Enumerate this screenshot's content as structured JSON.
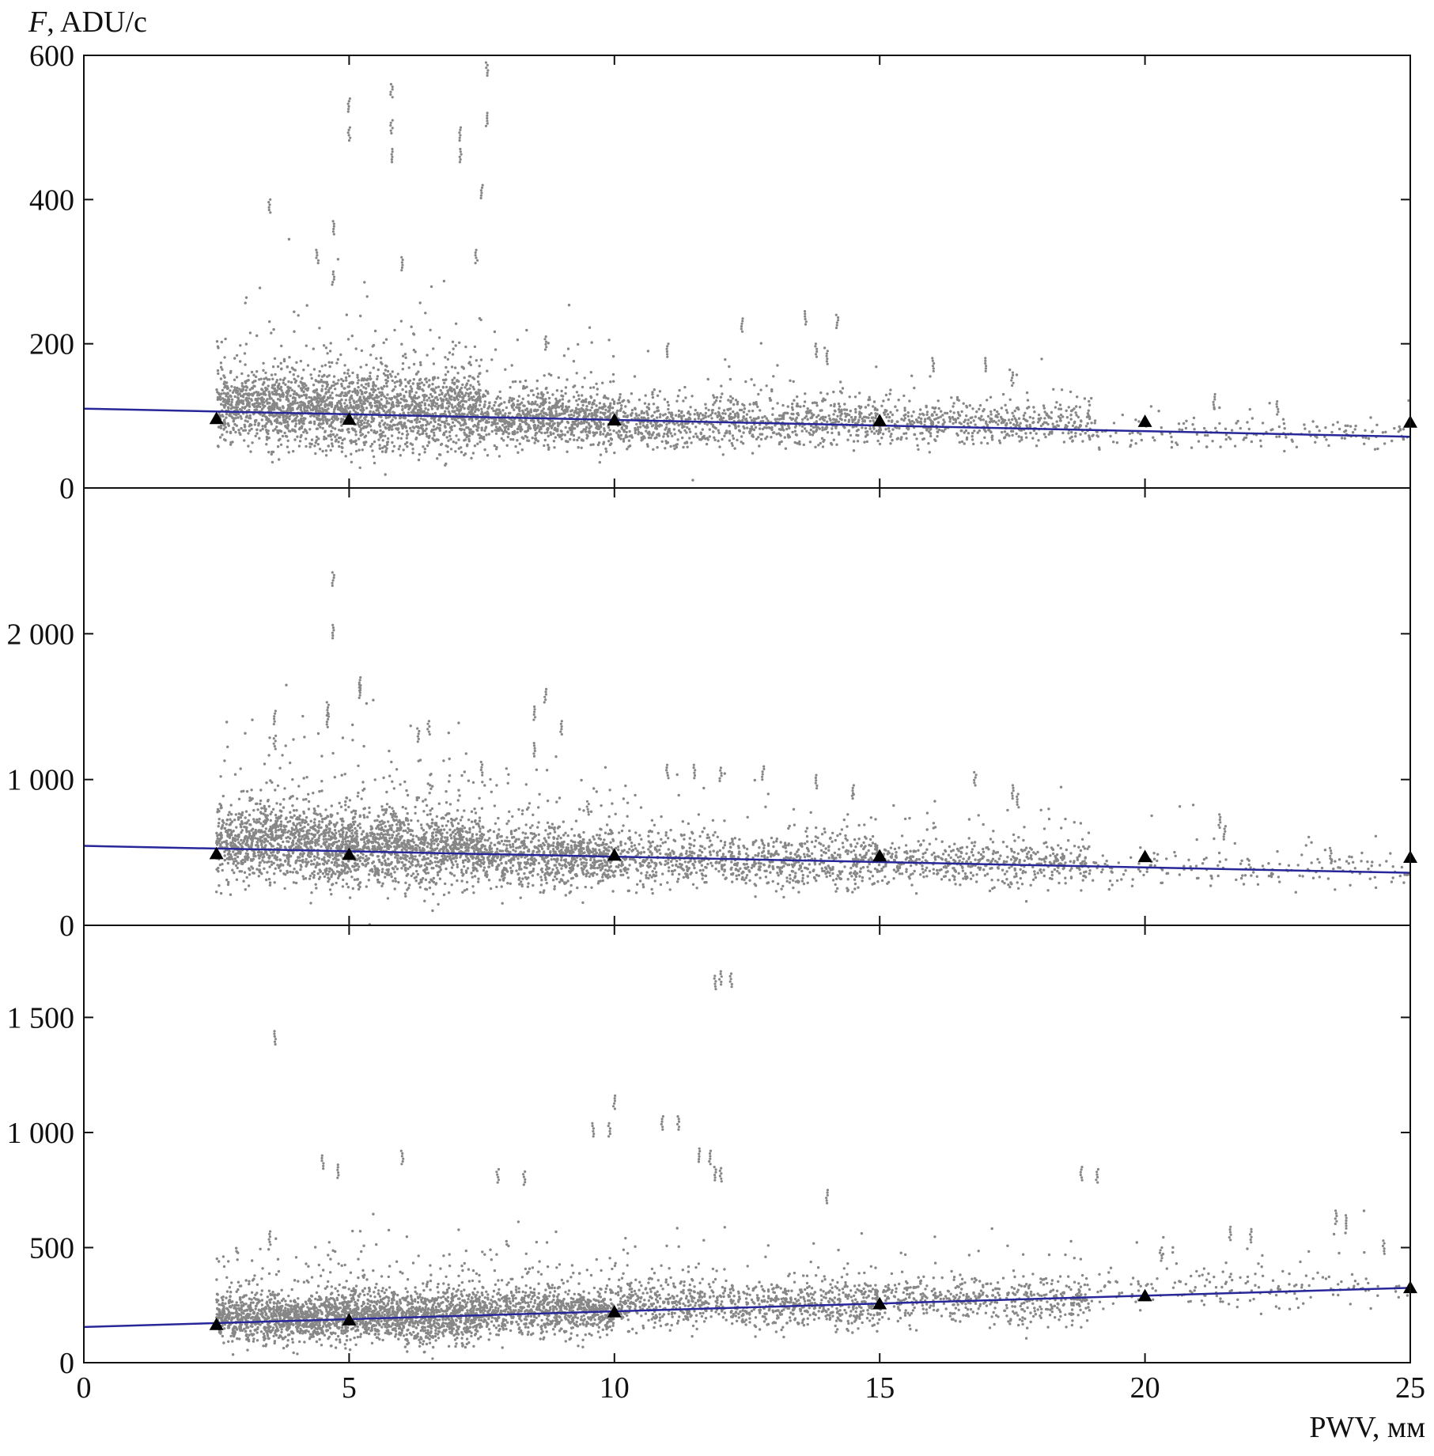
{
  "chart_data": {
    "type": "scatter",
    "ylabel": "F, ADU/c",
    "ylabel_italic": "F",
    "ylabel_rest": ", ADU/c",
    "xlabel": "PWV, мм",
    "xlim": [
      0,
      25
    ],
    "x_ticks": [
      0,
      5,
      10,
      15,
      20,
      25
    ],
    "x_tick_labels": [
      "0",
      "5",
      "10",
      "15",
      "20",
      "25"
    ],
    "point_color": "#878787",
    "marker_color": "#000000",
    "fit_color": "#27279a",
    "frame_color": "#111111",
    "panels": [
      {
        "ylim": [
          0,
          600
        ],
        "y_ticks": [
          0,
          200,
          400,
          600
        ],
        "y_tick_labels": [
          "0",
          "200",
          "400",
          "600"
        ],
        "triangles": [
          {
            "x": 2.5,
            "y": 96
          },
          {
            "x": 5,
            "y": 95
          },
          {
            "x": 10,
            "y": 94
          },
          {
            "x": 15,
            "y": 93
          },
          {
            "x": 20,
            "y": 92
          },
          {
            "x": 25,
            "y": 91
          }
        ],
        "fit_line": {
          "x": [
            0,
            25
          ],
          "y": [
            110,
            71
          ]
        },
        "scatter_density": [
          {
            "x0": 2.5,
            "x1": 4.5,
            "center": 110,
            "spread": 45,
            "count": 900
          },
          {
            "x0": 4.5,
            "x1": 7.5,
            "center": 105,
            "spread": 50,
            "count": 1400
          },
          {
            "x0": 7.5,
            "x1": 10,
            "center": 95,
            "spread": 35,
            "count": 800
          },
          {
            "x0": 10,
            "x1": 15,
            "center": 90,
            "spread": 30,
            "count": 900
          },
          {
            "x0": 15,
            "x1": 19,
            "center": 88,
            "spread": 25,
            "count": 500
          },
          {
            "x0": 19,
            "x1": 25,
            "center": 75,
            "spread": 18,
            "count": 180
          }
        ],
        "outliers": [
          {
            "x": 3.5,
            "y": 400
          },
          {
            "x": 4.7,
            "y": 370
          },
          {
            "x": 5.0,
            "y": 540
          },
          {
            "x": 5.0,
            "y": 500
          },
          {
            "x": 5.8,
            "y": 560
          },
          {
            "x": 5.8,
            "y": 510
          },
          {
            "x": 5.8,
            "y": 470
          },
          {
            "x": 7.1,
            "y": 500
          },
          {
            "x": 7.1,
            "y": 470
          },
          {
            "x": 7.6,
            "y": 590
          },
          {
            "x": 7.6,
            "y": 520
          },
          {
            "x": 7.5,
            "y": 420
          },
          {
            "x": 4.4,
            "y": 330
          },
          {
            "x": 4.7,
            "y": 300
          },
          {
            "x": 6.0,
            "y": 320
          },
          {
            "x": 7.4,
            "y": 330
          },
          {
            "x": 12.4,
            "y": 235
          },
          {
            "x": 13.6,
            "y": 245
          },
          {
            "x": 14.2,
            "y": 240
          },
          {
            "x": 13.8,
            "y": 200
          },
          {
            "x": 14.0,
            "y": 190
          },
          {
            "x": 17.0,
            "y": 180
          },
          {
            "x": 16.0,
            "y": 180
          },
          {
            "x": 21.3,
            "y": 130
          },
          {
            "x": 22.5,
            "y": 120
          },
          {
            "x": 17.5,
            "y": 160
          },
          {
            "x": 11.0,
            "y": 200
          },
          {
            "x": 8.7,
            "y": 210
          }
        ]
      },
      {
        "ylim": [
          0,
          3000
        ],
        "y_ticks": [
          0,
          1000,
          2000
        ],
        "y_tick_labels": [
          "0",
          "1 000",
          "2 000"
        ],
        "triangles": [
          {
            "x": 2.5,
            "y": 490
          },
          {
            "x": 5,
            "y": 485
          },
          {
            "x": 10,
            "y": 480
          },
          {
            "x": 15,
            "y": 475
          },
          {
            "x": 20,
            "y": 470
          },
          {
            "x": 25,
            "y": 465
          }
        ],
        "fit_line": {
          "x": [
            0,
            25
          ],
          "y": [
            545,
            360
          ]
        },
        "scatter_density": [
          {
            "x0": 2.5,
            "x1": 4.5,
            "center": 560,
            "spread": 240,
            "count": 900
          },
          {
            "x0": 4.5,
            "x1": 7.5,
            "center": 520,
            "spread": 230,
            "count": 1400
          },
          {
            "x0": 7.5,
            "x1": 10,
            "center": 460,
            "spread": 180,
            "count": 800
          },
          {
            "x0": 10,
            "x1": 15,
            "center": 440,
            "spread": 160,
            "count": 900
          },
          {
            "x0": 15,
            "x1": 19,
            "center": 420,
            "spread": 140,
            "count": 500
          },
          {
            "x0": 19,
            "x1": 25,
            "center": 380,
            "spread": 100,
            "count": 180
          }
        ],
        "outliers": [
          {
            "x": 4.7,
            "y": 2420
          },
          {
            "x": 4.7,
            "y": 2060
          },
          {
            "x": 5.2,
            "y": 1700
          },
          {
            "x": 5.2,
            "y": 1650
          },
          {
            "x": 3.6,
            "y": 1470
          },
          {
            "x": 3.6,
            "y": 1300
          },
          {
            "x": 4.6,
            "y": 1530
          },
          {
            "x": 4.6,
            "y": 1450
          },
          {
            "x": 6.5,
            "y": 1400
          },
          {
            "x": 6.3,
            "y": 1350
          },
          {
            "x": 8.7,
            "y": 1620
          },
          {
            "x": 8.5,
            "y": 1500
          },
          {
            "x": 9.0,
            "y": 1400
          },
          {
            "x": 8.5,
            "y": 1250
          },
          {
            "x": 11.0,
            "y": 1100
          },
          {
            "x": 11.5,
            "y": 1100
          },
          {
            "x": 12.0,
            "y": 1080
          },
          {
            "x": 12.8,
            "y": 1090
          },
          {
            "x": 13.8,
            "y": 1030
          },
          {
            "x": 14.5,
            "y": 960
          },
          {
            "x": 16.8,
            "y": 1050
          },
          {
            "x": 17.5,
            "y": 960
          },
          {
            "x": 17.6,
            "y": 900
          },
          {
            "x": 21.4,
            "y": 760
          },
          {
            "x": 21.5,
            "y": 680
          },
          {
            "x": 23.5,
            "y": 530
          },
          {
            "x": 7.5,
            "y": 1120
          },
          {
            "x": 9.5,
            "y": 850
          }
        ]
      },
      {
        "ylim": [
          0,
          1900
        ],
        "y_ticks": [
          0,
          500,
          1000,
          1500
        ],
        "y_tick_labels": [
          "0",
          "500",
          "1 000",
          "1 500"
        ],
        "triangles": [
          {
            "x": 2.5,
            "y": 165
          },
          {
            "x": 5,
            "y": 185
          },
          {
            "x": 10,
            "y": 220
          },
          {
            "x": 15,
            "y": 255
          },
          {
            "x": 20,
            "y": 290
          },
          {
            "x": 25,
            "y": 325
          }
        ],
        "fit_line": {
          "x": [
            0,
            25
          ],
          "y": [
            155,
            325
          ]
        },
        "scatter_density": [
          {
            "x0": 2.5,
            "x1": 4.5,
            "center": 190,
            "spread": 90,
            "count": 900
          },
          {
            "x0": 4.5,
            "x1": 7.5,
            "center": 200,
            "spread": 100,
            "count": 1400
          },
          {
            "x0": 7.5,
            "x1": 10,
            "center": 220,
            "spread": 90,
            "count": 800
          },
          {
            "x0": 10,
            "x1": 15,
            "center": 250,
            "spread": 90,
            "count": 900
          },
          {
            "x0": 15,
            "x1": 19,
            "center": 270,
            "spread": 90,
            "count": 500
          },
          {
            "x0": 19,
            "x1": 25,
            "center": 320,
            "spread": 90,
            "count": 180
          }
        ],
        "outliers": [
          {
            "x": 3.6,
            "y": 1440
          },
          {
            "x": 12.0,
            "y": 1700
          },
          {
            "x": 12.2,
            "y": 1690
          },
          {
            "x": 11.9,
            "y": 1680
          },
          {
            "x": 10.0,
            "y": 1160
          },
          {
            "x": 9.6,
            "y": 1040
          },
          {
            "x": 9.9,
            "y": 1040
          },
          {
            "x": 10.9,
            "y": 1070
          },
          {
            "x": 11.2,
            "y": 1070
          },
          {
            "x": 11.6,
            "y": 930
          },
          {
            "x": 11.8,
            "y": 920
          },
          {
            "x": 11.9,
            "y": 850
          },
          {
            "x": 12.0,
            "y": 845
          },
          {
            "x": 4.5,
            "y": 900
          },
          {
            "x": 4.8,
            "y": 860
          },
          {
            "x": 6.0,
            "y": 920
          },
          {
            "x": 7.8,
            "y": 840
          },
          {
            "x": 8.3,
            "y": 830
          },
          {
            "x": 14.0,
            "y": 750
          },
          {
            "x": 18.8,
            "y": 850
          },
          {
            "x": 19.1,
            "y": 840
          },
          {
            "x": 23.6,
            "y": 660
          },
          {
            "x": 23.8,
            "y": 640
          },
          {
            "x": 21.6,
            "y": 590
          },
          {
            "x": 22.0,
            "y": 580
          },
          {
            "x": 24.5,
            "y": 530
          },
          {
            "x": 20.3,
            "y": 500
          },
          {
            "x": 3.5,
            "y": 570
          }
        ]
      }
    ]
  }
}
